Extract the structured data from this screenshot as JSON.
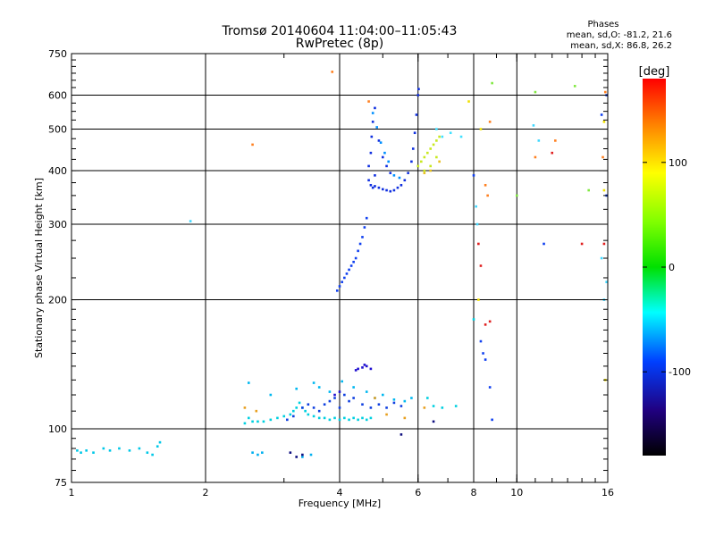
{
  "header": {
    "title_line1": "Tromsø 20140604 11:04:00–11:05:43",
    "title_line2": "RwPretec (8p)"
  },
  "phase_box": {
    "heading": "Phases",
    "line_o": "mean, sd,O: -81.2, 21.6",
    "line_x": "mean, sd,X:  86.8, 26.2"
  },
  "chart_data": {
    "type": "scatter",
    "xlabel": "Frequency [MHz]",
    "ylabel": "Stationary phase Virtual Height [km]",
    "x_scale": "log",
    "y_scale": "log",
    "xlim": [
      1,
      16
    ],
    "ylim": [
      75,
      750
    ],
    "x_ticks": [
      1,
      2,
      4,
      6,
      8,
      10,
      16
    ],
    "y_ticks": [
      75,
      100,
      200,
      300,
      400,
      500,
      600,
      750
    ],
    "grid_x": [
      2,
      4,
      6,
      8,
      10
    ],
    "grid_y": [
      100,
      200,
      300,
      400,
      500,
      600
    ],
    "grid": true,
    "colorbar": {
      "label": "[deg]",
      "range": [
        -180,
        180
      ],
      "ticks": [
        100,
        0,
        -100
      ]
    },
    "point_groups": [
      {
        "color": "#00c8e8",
        "points": [
          [
            1.03,
            89
          ],
          [
            1.05,
            88
          ],
          [
            1.08,
            89
          ],
          [
            1.12,
            88
          ],
          [
            1.18,
            90
          ],
          [
            1.22,
            89
          ],
          [
            1.28,
            90
          ],
          [
            1.35,
            89
          ],
          [
            1.42,
            90
          ],
          [
            1.48,
            88
          ],
          [
            1.52,
            87
          ],
          [
            1.56,
            91
          ],
          [
            1.58,
            93
          ]
        ]
      },
      {
        "color": "#00b0f0",
        "points": [
          [
            2.55,
            88
          ],
          [
            2.62,
            87
          ],
          [
            2.68,
            88
          ],
          [
            3.3,
            86
          ],
          [
            3.45,
            87
          ]
        ]
      },
      {
        "color": "#00d0e0",
        "points": [
          [
            2.45,
            103
          ],
          [
            2.5,
            106
          ],
          [
            2.55,
            104
          ],
          [
            2.62,
            104
          ],
          [
            2.7,
            104
          ],
          [
            2.8,
            105
          ],
          [
            2.9,
            106
          ],
          [
            3.0,
            107
          ],
          [
            3.1,
            108
          ],
          [
            3.15,
            110
          ],
          [
            3.2,
            112
          ],
          [
            3.25,
            115
          ],
          [
            3.3,
            112
          ],
          [
            3.35,
            110
          ],
          [
            3.4,
            108
          ],
          [
            3.5,
            107
          ],
          [
            3.6,
            106
          ],
          [
            3.7,
            106
          ],
          [
            3.8,
            105
          ],
          [
            3.9,
            106
          ],
          [
            4.0,
            105
          ],
          [
            4.1,
            106
          ],
          [
            4.2,
            105
          ],
          [
            4.3,
            106
          ],
          [
            4.4,
            105
          ],
          [
            4.5,
            106
          ],
          [
            4.6,
            105
          ],
          [
            4.7,
            106
          ]
        ]
      },
      {
        "color": "#1040e0",
        "points": [
          [
            3.05,
            105
          ],
          [
            3.15,
            107
          ],
          [
            3.3,
            112
          ],
          [
            3.4,
            114
          ],
          [
            3.5,
            112
          ],
          [
            3.6,
            110
          ],
          [
            3.7,
            114
          ],
          [
            3.8,
            116
          ],
          [
            3.9,
            118
          ],
          [
            4.0,
            112
          ],
          [
            4.1,
            120
          ],
          [
            4.2,
            116
          ],
          [
            4.3,
            118
          ],
          [
            4.5,
            114
          ],
          [
            4.7,
            112
          ],
          [
            4.9,
            114
          ],
          [
            5.1,
            112
          ],
          [
            5.3,
            115
          ],
          [
            5.5,
            113
          ]
        ]
      },
      {
        "color": "#2010d0",
        "points": [
          [
            4.4,
            138
          ],
          [
            4.5,
            139
          ],
          [
            4.6,
            140
          ],
          [
            4.7,
            138
          ],
          [
            4.35,
            137
          ],
          [
            4.55,
            141
          ],
          [
            3.9,
            120
          ],
          [
            4.0,
            122
          ]
        ]
      },
      {
        "color": "#00b8f0",
        "points": [
          [
            3.5,
            128
          ],
          [
            3.6,
            125
          ],
          [
            3.8,
            122
          ],
          [
            4.05,
            129
          ],
          [
            4.3,
            125
          ],
          [
            4.6,
            122
          ],
          [
            4.8,
            118
          ],
          [
            5.0,
            120
          ],
          [
            5.3,
            117
          ],
          [
            5.6,
            116
          ],
          [
            5.8,
            118
          ],
          [
            2.5,
            128
          ],
          [
            2.8,
            120
          ],
          [
            3.2,
            124
          ]
        ]
      },
      {
        "color": "#1040f0",
        "points": [
          [
            3.95,
            210
          ],
          [
            4.0,
            215
          ],
          [
            4.05,
            220
          ],
          [
            4.1,
            225
          ],
          [
            4.15,
            230
          ],
          [
            4.2,
            235
          ],
          [
            4.25,
            240
          ],
          [
            4.3,
            245
          ],
          [
            4.35,
            250
          ],
          [
            4.4,
            260
          ],
          [
            4.45,
            270
          ],
          [
            4.5,
            280
          ],
          [
            4.55,
            295
          ],
          [
            4.6,
            310
          ]
        ]
      },
      {
        "color": "#1030e0",
        "points": [
          [
            4.65,
            380
          ],
          [
            4.7,
            370
          ],
          [
            4.75,
            365
          ],
          [
            4.8,
            368
          ],
          [
            4.9,
            365
          ],
          [
            5.0,
            362
          ],
          [
            5.1,
            360
          ],
          [
            5.2,
            358
          ],
          [
            5.3,
            360
          ],
          [
            5.4,
            365
          ],
          [
            5.5,
            370
          ],
          [
            5.6,
            380
          ],
          [
            5.7,
            395
          ],
          [
            5.8,
            420
          ],
          [
            5.85,
            450
          ],
          [
            5.9,
            490
          ],
          [
            5.95,
            540
          ],
          [
            6.0,
            600
          ],
          [
            6.02,
            620
          ],
          [
            4.7,
            440
          ],
          [
            4.72,
            480
          ],
          [
            4.75,
            520
          ],
          [
            4.8,
            560
          ],
          [
            4.9,
            470
          ],
          [
            5.0,
            430
          ],
          [
            5.1,
            410
          ],
          [
            5.2,
            395
          ],
          [
            4.65,
            410
          ],
          [
            4.8,
            390
          ]
        ]
      },
      {
        "color": "#0090ff",
        "points": [
          [
            4.75,
            545
          ],
          [
            4.85,
            505
          ],
          [
            4.95,
            465
          ],
          [
            5.05,
            440
          ],
          [
            5.15,
            420
          ],
          [
            5.3,
            390
          ],
          [
            5.45,
            385
          ]
        ]
      },
      {
        "color": "#c8e820",
        "points": [
          [
            6.0,
            410
          ],
          [
            6.1,
            420
          ],
          [
            6.2,
            430
          ],
          [
            6.3,
            440
          ],
          [
            6.4,
            450
          ],
          [
            6.5,
            460
          ],
          [
            6.6,
            470
          ],
          [
            6.7,
            480
          ],
          [
            6.2,
            400
          ],
          [
            6.4,
            410
          ],
          [
            6.6,
            430
          ]
        ]
      },
      {
        "color": "#e8c020",
        "points": [
          [
            6.2,
            395
          ],
          [
            6.4,
            400
          ],
          [
            6.7,
            420
          ]
        ]
      },
      {
        "color": "#ff8020",
        "points": [
          [
            4.65,
            580
          ],
          [
            8.7,
            520
          ],
          [
            8.5,
            370
          ],
          [
            8.6,
            350
          ],
          [
            12.2,
            470
          ],
          [
            15.6,
            430
          ],
          [
            11.0,
            430
          ],
          [
            15.8,
            610
          ],
          [
            2.55,
            460
          ],
          [
            3.85,
            680
          ]
        ]
      },
      {
        "color": "#e02020",
        "points": [
          [
            8.3,
            240
          ],
          [
            8.2,
            270
          ],
          [
            8.5,
            175
          ],
          [
            8.7,
            178
          ],
          [
            12.0,
            440
          ],
          [
            15.7,
            270
          ],
          [
            14.0,
            270
          ]
        ]
      },
      {
        "color": "#40d8ff",
        "points": [
          [
            8.1,
            330
          ],
          [
            8.15,
            300
          ],
          [
            10.9,
            510
          ],
          [
            11.2,
            470
          ],
          [
            15.9,
            220
          ],
          [
            15.5,
            250
          ],
          [
            1.85,
            305
          ],
          [
            15.7,
            200
          ]
        ]
      },
      {
        "color": "#1040f0",
        "points": [
          [
            8.3,
            160
          ],
          [
            8.4,
            150
          ],
          [
            8.5,
            145
          ],
          [
            8.7,
            125
          ],
          [
            8.8,
            105
          ],
          [
            11.5,
            270
          ],
          [
            8.0,
            390
          ],
          [
            15.9,
            350
          ],
          [
            15.9,
            600
          ],
          [
            15.5,
            540
          ]
        ]
      },
      {
        "color": "#80e840",
        "points": [
          [
            8.8,
            640
          ],
          [
            11.0,
            610
          ],
          [
            13.5,
            630
          ],
          [
            10.0,
            350
          ],
          [
            14.5,
            360
          ]
        ]
      },
      {
        "color": "#40e0ff",
        "points": [
          [
            6.6,
            500
          ],
          [
            6.8,
            480
          ],
          [
            7.1,
            490
          ],
          [
            7.5,
            480
          ]
        ]
      },
      {
        "color": "#f0e000",
        "points": [
          [
            7.8,
            580
          ],
          [
            8.3,
            500
          ],
          [
            8.2,
            200
          ],
          [
            15.7,
            360
          ],
          [
            15.7,
            520
          ],
          [
            15.8,
            130
          ]
        ]
      },
      {
        "color": "#00d0e0",
        "points": [
          [
            6.3,
            118
          ],
          [
            6.5,
            113
          ],
          [
            6.8,
            112
          ],
          [
            7.3,
            113
          ],
          [
            8.0,
            180
          ]
        ]
      },
      {
        "color": "#e8a020",
        "points": [
          [
            2.45,
            112
          ],
          [
            2.6,
            110
          ],
          [
            5.1,
            108
          ],
          [
            5.6,
            106
          ],
          [
            6.2,
            112
          ],
          [
            4.8,
            118
          ]
        ]
      },
      {
        "color": "#101080",
        "points": [
          [
            3.1,
            88
          ],
          [
            3.2,
            86
          ],
          [
            3.3,
            87
          ],
          [
            5.5,
            97
          ],
          [
            6.5,
            104
          ]
        ]
      }
    ]
  }
}
